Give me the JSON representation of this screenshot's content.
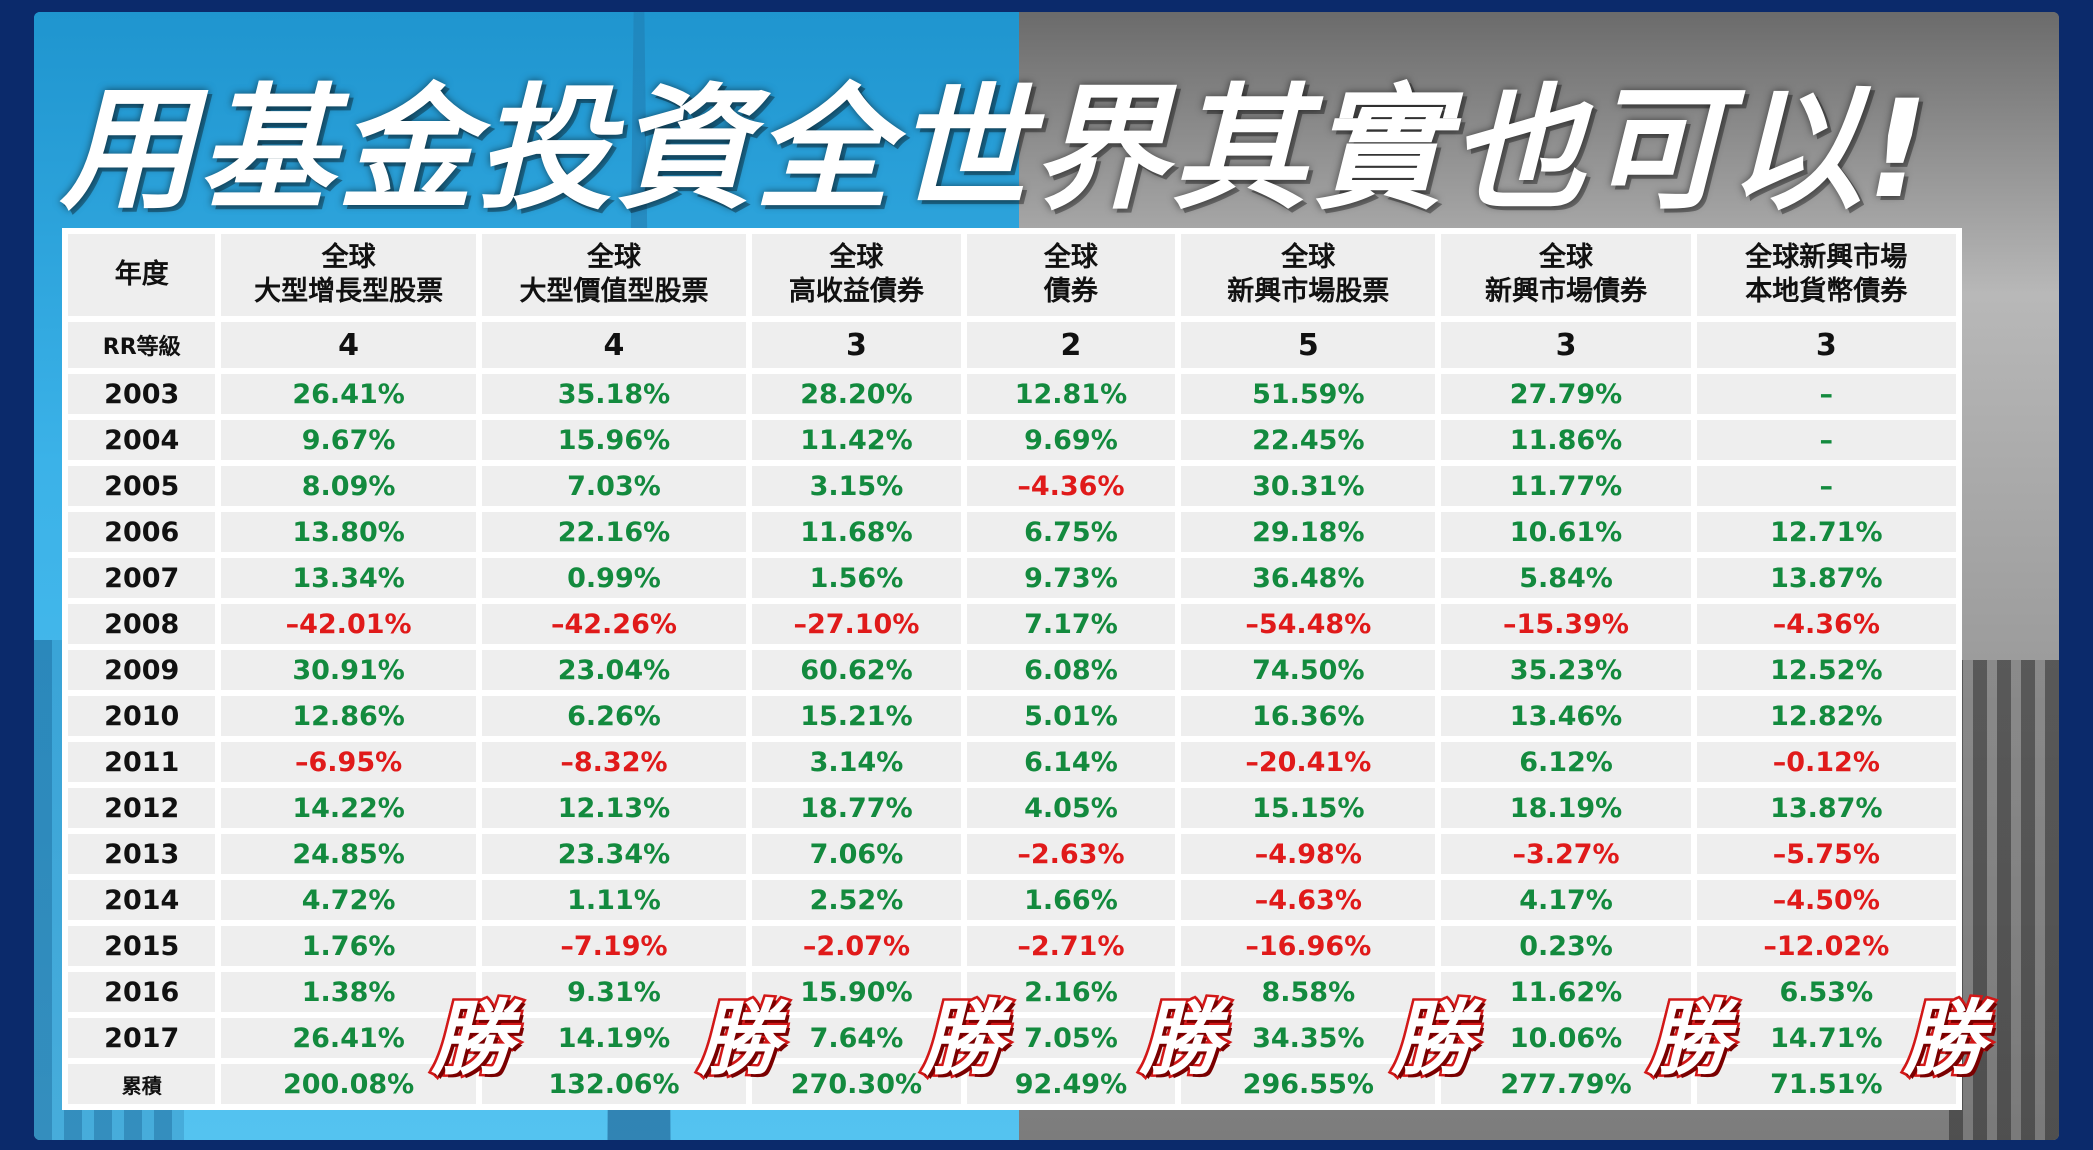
{
  "title": "用基金投資全世界其實也可以!",
  "header": {
    "year": "年度",
    "columns": [
      {
        "line1": "全球",
        "line2": "大型增長型股票"
      },
      {
        "line1": "全球",
        "line2": "大型價值型股票"
      },
      {
        "line1": "全球",
        "line2": "高收益債券"
      },
      {
        "line1": "全球",
        "line2": "債券"
      },
      {
        "line1": "全球",
        "line2": "新興市場股票"
      },
      {
        "line1": "全球",
        "line2": "新興市場債券"
      },
      {
        "line1": "全球新興市場",
        "line2": "本地貨幣債券"
      }
    ]
  },
  "rr": {
    "label": "RR等級",
    "values": [
      "4",
      "4",
      "3",
      "2",
      "5",
      "3",
      "3"
    ]
  },
  "rows": [
    {
      "year": "2003",
      "values": [
        "26.41%",
        "35.18%",
        "28.20%",
        "12.81%",
        "51.59%",
        "27.79%",
        "–"
      ]
    },
    {
      "year": "2004",
      "values": [
        "9.67%",
        "15.96%",
        "11.42%",
        "9.69%",
        "22.45%",
        "11.86%",
        "–"
      ]
    },
    {
      "year": "2005",
      "values": [
        "8.09%",
        "7.03%",
        "3.15%",
        "–4.36%",
        "30.31%",
        "11.77%",
        "–"
      ]
    },
    {
      "year": "2006",
      "values": [
        "13.80%",
        "22.16%",
        "11.68%",
        "6.75%",
        "29.18%",
        "10.61%",
        "12.71%"
      ]
    },
    {
      "year": "2007",
      "values": [
        "13.34%",
        "0.99%",
        "1.56%",
        "9.73%",
        "36.48%",
        "5.84%",
        "13.87%"
      ]
    },
    {
      "year": "2008",
      "values": [
        "–42.01%",
        "–42.26%",
        "–27.10%",
        "7.17%",
        "–54.48%",
        "–15.39%",
        "–4.36%"
      ]
    },
    {
      "year": "2009",
      "values": [
        "30.91%",
        "23.04%",
        "60.62%",
        "6.08%",
        "74.50%",
        "35.23%",
        "12.52%"
      ]
    },
    {
      "year": "2010",
      "values": [
        "12.86%",
        "6.26%",
        "15.21%",
        "5.01%",
        "16.36%",
        "13.46%",
        "12.82%"
      ]
    },
    {
      "year": "2011",
      "values": [
        "–6.95%",
        "–8.32%",
        "3.14%",
        "6.14%",
        "–20.41%",
        "6.12%",
        "–0.12%"
      ]
    },
    {
      "year": "2012",
      "values": [
        "14.22%",
        "12.13%",
        "18.77%",
        "4.05%",
        "15.15%",
        "18.19%",
        "13.87%"
      ]
    },
    {
      "year": "2013",
      "values": [
        "24.85%",
        "23.34%",
        "7.06%",
        "–2.63%",
        "–4.98%",
        "–3.27%",
        "–5.75%"
      ]
    },
    {
      "year": "2014",
      "values": [
        "4.72%",
        "1.11%",
        "2.52%",
        "1.66%",
        "–4.63%",
        "4.17%",
        "–4.50%"
      ]
    },
    {
      "year": "2015",
      "values": [
        "1.76%",
        "–7.19%",
        "–2.07%",
        "–2.71%",
        "–16.96%",
        "0.23%",
        "–12.02%"
      ]
    },
    {
      "year": "2016",
      "values": [
        "1.38%",
        "9.31%",
        "15.90%",
        "2.16%",
        "8.58%",
        "11.62%",
        "6.53%"
      ]
    },
    {
      "year": "2017",
      "values": [
        "26.41%",
        "14.19%",
        "7.64%",
        "7.05%",
        "34.35%",
        "10.06%",
        "14.71%"
      ]
    }
  ],
  "cumulative": {
    "label": "累積",
    "values": [
      "200.08%",
      "132.06%",
      "270.30%",
      "92.49%",
      "296.55%",
      "277.79%",
      "71.51%"
    ]
  },
  "win_stamps": [
    "勝",
    "勝",
    "勝",
    "勝",
    "勝",
    "勝",
    "勝"
  ],
  "colors": {
    "positive": "#138a3e",
    "negative": "#e01a1a",
    "stamp": "#d21818"
  }
}
